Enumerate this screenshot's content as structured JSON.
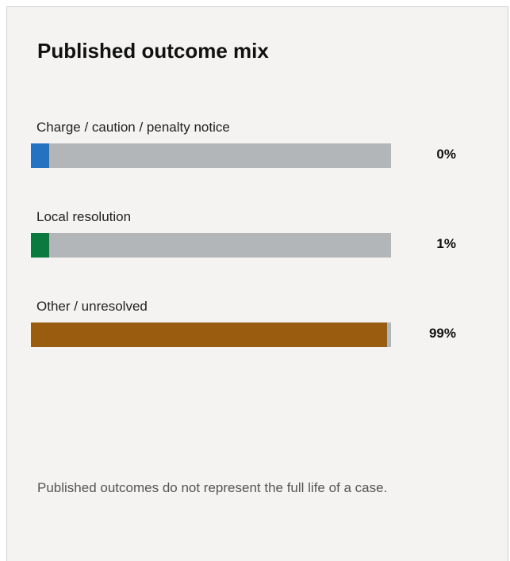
{
  "chart_data": {
    "type": "bar",
    "orientation": "horizontal",
    "title": "Published outcome mix",
    "categories": [
      "Charge / caution / penalty notice",
      "Local resolution",
      "Other / unresolved"
    ],
    "values": [
      0,
      1,
      99
    ],
    "value_labels": [
      "0%",
      "1%",
      "99%"
    ],
    "unit": "%",
    "xlim": [
      0,
      100
    ],
    "colors": [
      "#2571c2",
      "#0b7a3f",
      "#9a5d10"
    ],
    "track_color": "#b3b6b8",
    "grid": false,
    "legend": "none"
  },
  "footnote": "Published outcomes do not represent the full life of a case."
}
